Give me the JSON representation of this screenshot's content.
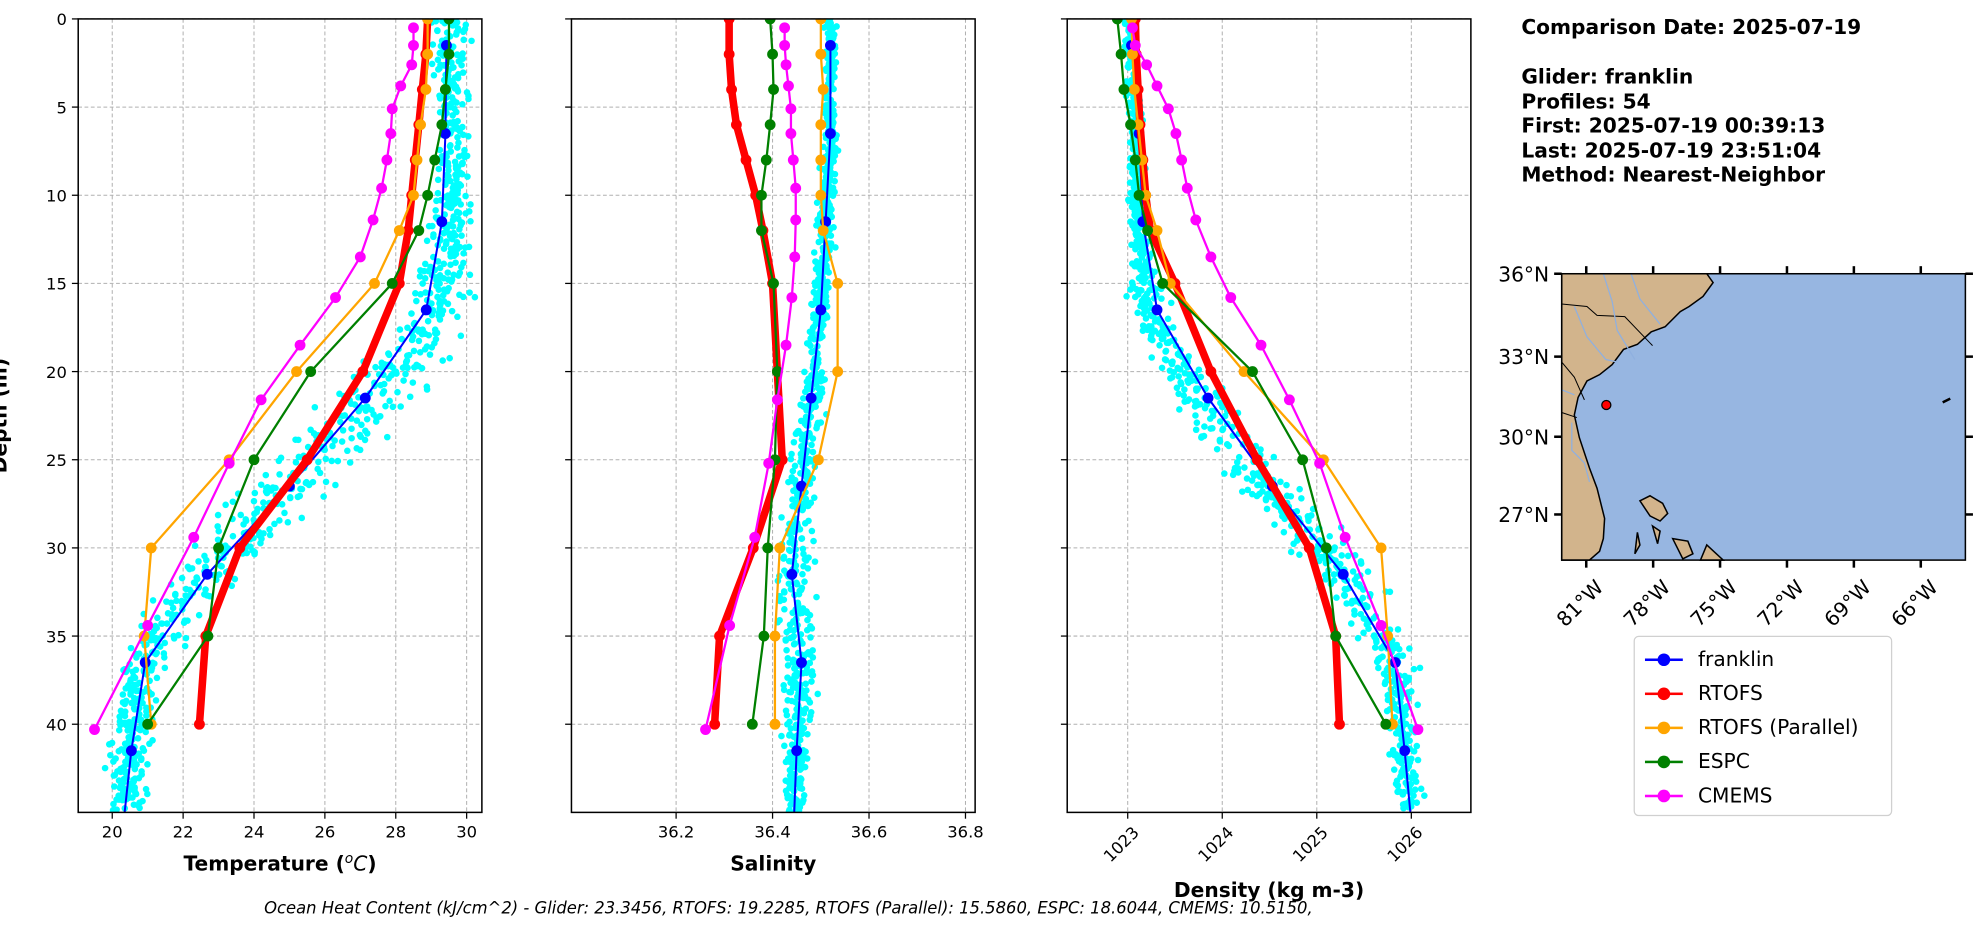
{
  "info": {
    "comparison_date": "Comparison Date: 2025-07-19",
    "glider": "Glider: franklin",
    "profiles": "Profiles: 54",
    "first": "First: 2025-07-19 00:39:13",
    "last": "Last: 2025-07-19 23:51:04",
    "method": "Method: Nearest-Neighbor"
  },
  "ohc_text": "Ocean Heat Content (kJ/cm^2) - Glider: 23.3456,  RTOFS: 19.2285,  RTOFS (Parallel): 15.5860,  ESPC: 18.6044,  CMEMS: 10.5150,",
  "legend": [
    {
      "label": "franklin",
      "color": "#0000ff"
    },
    {
      "label": "RTOFS",
      "color": "#ff0000"
    },
    {
      "label": "RTOFS (Parallel)",
      "color": "#ffa500"
    },
    {
      "label": "ESPC",
      "color": "#008000"
    },
    {
      "label": "CMEMS",
      "color": "#ff00ff"
    }
  ],
  "scatter_color": "#00ffff",
  "map": {
    "lat_ticks": [
      "36°N",
      "33°N",
      "30°N",
      "27°N"
    ],
    "lat_values": [
      36,
      33,
      30,
      27
    ],
    "lon_ticks": [
      "81°W",
      "78°W",
      "75°W",
      "72°W",
      "69°W",
      "66°W"
    ],
    "lon_values": [
      -81,
      -78,
      -75,
      -72,
      -69,
      -66
    ],
    "lon_range": [
      -82.1,
      -64.0
    ],
    "lat_range": [
      25.2,
      36.0
    ],
    "glider_position": {
      "lon": -80.1,
      "lat": 31.2
    },
    "land_color": "#d2b48c",
    "ocean_color": "#97b6e1"
  },
  "chart_data": [
    {
      "type": "line",
      "id": "temperature",
      "xlabel_prefix": "Temperature (",
      "xlabel_sup": "o",
      "xlabel_unit": "C",
      "xlabel_suffix": ")",
      "ylabel": "Depth (m)",
      "xlim": [
        19.04,
        30.43
      ],
      "ylim": [
        45,
        0
      ],
      "xticks": [
        20,
        22,
        24,
        26,
        28,
        30
      ],
      "xtick_labels": [
        "20",
        "22",
        "24",
        "26",
        "28",
        "30"
      ],
      "yticks": [
        0,
        5,
        10,
        15,
        20,
        25,
        30,
        35,
        40
      ],
      "ytick_labels": [
        "0",
        "5",
        "10",
        "15",
        "20",
        "25",
        "30",
        "35",
        "40"
      ],
      "grid": true,
      "scatter_spread": [
        [
          0,
          0.35
        ],
        [
          10,
          0.3
        ],
        [
          15,
          0.5
        ],
        [
          20,
          0.8
        ],
        [
          25,
          0.9
        ],
        [
          30,
          0.8
        ],
        [
          35,
          0.5
        ],
        [
          45,
          0.35
        ]
      ],
      "scatter_bias": [
        [
          0,
          0.1
        ],
        [
          15,
          0.3
        ],
        [
          20,
          0.3
        ],
        [
          25,
          0.0
        ],
        [
          45,
          0.0
        ]
      ],
      "series": [
        {
          "name": "franklin",
          "depth": [
            1.5,
            6.5,
            11.5,
            16.5,
            21.5,
            26.5,
            31.5,
            36.5,
            41.5,
            45
          ],
          "values": [
            29.43,
            29.4,
            29.3,
            28.86,
            27.14,
            25.0,
            22.68,
            20.93,
            20.54,
            20.35
          ],
          "markers": [
            true,
            true,
            true,
            true,
            true,
            true,
            true,
            true,
            true,
            false
          ]
        },
        {
          "name": "RTOFS",
          "depth": [
            0,
            2,
            4,
            6,
            8,
            10,
            12,
            15,
            20,
            25,
            30,
            35,
            40
          ],
          "values": [
            28.9,
            28.85,
            28.75,
            28.65,
            28.55,
            28.45,
            28.35,
            28.1,
            27.07,
            25.5,
            23.6,
            22.64,
            22.46
          ]
        },
        {
          "name": "RTOFS (Parallel)",
          "depth": [
            0,
            2,
            4,
            6,
            8,
            10,
            12,
            15,
            20,
            25,
            30,
            35,
            40
          ],
          "values": [
            28.9,
            28.9,
            28.85,
            28.7,
            28.6,
            28.5,
            28.1,
            27.4,
            25.2,
            23.3,
            21.1,
            20.9,
            21.1
          ]
        },
        {
          "name": "ESPC",
          "depth": [
            0,
            2,
            4,
            6,
            8,
            10,
            12,
            15,
            20,
            25,
            30,
            35,
            40
          ],
          "values": [
            29.5,
            29.5,
            29.4,
            29.3,
            29.1,
            28.9,
            28.65,
            27.9,
            25.6,
            24.0,
            23.0,
            22.7,
            21.0
          ]
        },
        {
          "name": "CMEMS",
          "depth": [
            0.5,
            1.5,
            2.6,
            3.8,
            5.1,
            6.5,
            8.0,
            9.6,
            11.4,
            13.5,
            15.8,
            18.5,
            21.6,
            25.2,
            29.4,
            34.4,
            40.3
          ],
          "values": [
            28.5,
            28.5,
            28.45,
            28.14,
            27.9,
            27.86,
            27.75,
            27.6,
            27.36,
            27.0,
            26.3,
            25.3,
            24.2,
            23.3,
            22.3,
            21.0,
            19.5
          ]
        }
      ]
    },
    {
      "type": "line",
      "id": "salinity",
      "xlabel": "Salinity",
      "xlim": [
        35.983,
        36.82
      ],
      "ylim": [
        45,
        0
      ],
      "xticks": [
        36.2,
        36.4,
        36.6,
        36.8
      ],
      "xtick_labels": [
        "36.2",
        "36.4",
        "36.6",
        "36.8"
      ],
      "yticks": [
        0,
        5,
        10,
        15,
        20,
        25,
        30,
        35,
        40
      ],
      "grid": true,
      "scatter_spread": [
        [
          0,
          0.008
        ],
        [
          15,
          0.012
        ],
        [
          25,
          0.02
        ],
        [
          35,
          0.025
        ],
        [
          45,
          0.015
        ]
      ],
      "scatter_bias": [
        [
          0,
          0.0
        ],
        [
          45,
          0.0
        ]
      ],
      "series": [
        {
          "name": "franklin",
          "depth": [
            1.5,
            6.5,
            11.5,
            16.5,
            21.5,
            26.5,
            31.5,
            36.5,
            41.5,
            45
          ],
          "values": [
            36.52,
            36.52,
            36.51,
            36.5,
            36.48,
            36.46,
            36.44,
            36.46,
            36.45,
            36.445
          ],
          "markers": [
            true,
            true,
            true,
            true,
            true,
            true,
            true,
            true,
            true,
            false
          ]
        },
        {
          "name": "RTOFS",
          "depth": [
            0,
            2,
            4,
            6,
            8,
            10,
            12,
            15,
            20,
            25,
            30,
            35,
            40
          ],
          "values": [
            36.31,
            36.31,
            36.315,
            36.325,
            36.345,
            36.365,
            36.38,
            36.4,
            36.41,
            36.42,
            36.36,
            36.29,
            36.28
          ]
        },
        {
          "name": "RTOFS (Parallel)",
          "depth": [
            0,
            2,
            4,
            6,
            8,
            10,
            12,
            15,
            20,
            25,
            30,
            35,
            40
          ],
          "values": [
            36.5,
            36.5,
            36.505,
            36.5,
            36.5,
            36.5,
            36.505,
            36.535,
            36.535,
            36.495,
            36.415,
            36.405,
            36.405
          ]
        },
        {
          "name": "ESPC",
          "depth": [
            0,
            2,
            4,
            6,
            8,
            10,
            12,
            15,
            20,
            25,
            30,
            35,
            40
          ],
          "values": [
            36.395,
            36.4,
            36.402,
            36.395,
            36.387,
            36.377,
            36.377,
            36.402,
            36.41,
            36.405,
            36.39,
            36.382,
            36.358
          ]
        },
        {
          "name": "CMEMS",
          "depth": [
            0.5,
            1.5,
            2.6,
            3.8,
            5.1,
            6.5,
            8.0,
            9.6,
            11.4,
            13.5,
            15.8,
            18.5,
            21.6,
            25.2,
            29.4,
            34.4,
            40.3
          ],
          "values": [
            36.425,
            36.425,
            36.428,
            36.433,
            36.438,
            36.438,
            36.443,
            36.448,
            36.448,
            36.446,
            36.44,
            36.428,
            36.41,
            36.392,
            36.363,
            36.311,
            36.261
          ]
        }
      ]
    },
    {
      "type": "line",
      "id": "density",
      "xlabel": "Density (kg m-3)",
      "xlim": [
        1022.36,
        1026.63
      ],
      "ylim": [
        45,
        0
      ],
      "xticks": [
        1023,
        1024,
        1025,
        1026
      ],
      "xtick_labels": [
        "1023",
        "1024",
        "1025",
        "1026"
      ],
      "yticks": [
        0,
        5,
        10,
        15,
        20,
        25,
        30,
        35,
        40
      ],
      "grid": true,
      "scatter_spread": [
        [
          0,
          0.05
        ],
        [
          12,
          0.06
        ],
        [
          18,
          0.15
        ],
        [
          25,
          0.22
        ],
        [
          32,
          0.2
        ],
        [
          38,
          0.12
        ],
        [
          45,
          0.1
        ]
      ],
      "scatter_bias": [
        [
          0,
          0.0
        ],
        [
          18,
          -0.1
        ],
        [
          24,
          -0.1
        ],
        [
          30,
          0.0
        ],
        [
          45,
          0.0
        ]
      ],
      "series": [
        {
          "name": "franklin",
          "depth": [
            1.5,
            6.5,
            11.5,
            16.5,
            21.5,
            26.5,
            31.5,
            36.5,
            41.5,
            45
          ],
          "values": [
            1023.04,
            1023.12,
            1023.16,
            1023.31,
            1023.85,
            1024.53,
            1025.28,
            1025.83,
            1025.93,
            1025.99
          ],
          "markers": [
            true,
            true,
            true,
            true,
            true,
            true,
            true,
            true,
            true,
            false
          ]
        },
        {
          "name": "RTOFS",
          "depth": [
            0,
            2,
            4,
            6,
            8,
            10,
            12,
            15,
            20,
            25,
            30,
            35,
            40
          ],
          "values": [
            1023.08,
            1023.09,
            1023.11,
            1023.13,
            1023.16,
            1023.19,
            1023.24,
            1023.5,
            1023.88,
            1024.37,
            1024.92,
            1025.2,
            1025.24
          ]
        },
        {
          "name": "RTOFS (Parallel)",
          "depth": [
            0,
            2,
            4,
            6,
            8,
            10,
            12,
            15,
            20,
            25,
            30,
            35,
            40
          ],
          "values": [
            1023.04,
            1023.05,
            1023.07,
            1023.11,
            1023.15,
            1023.19,
            1023.31,
            1023.45,
            1024.23,
            1025.07,
            1025.68,
            1025.75,
            1025.8
          ]
        },
        {
          "name": "ESPC",
          "depth": [
            0,
            2,
            4,
            6,
            8,
            10,
            12,
            15,
            20,
            25,
            30,
            35,
            40
          ],
          "values": [
            1022.89,
            1022.93,
            1022.96,
            1023.03,
            1023.08,
            1023.12,
            1023.21,
            1023.37,
            1024.32,
            1024.85,
            1025.1,
            1025.2,
            1025.73
          ]
        },
        {
          "name": "CMEMS",
          "depth": [
            0.5,
            1.5,
            2.6,
            3.8,
            5.1,
            6.5,
            8.0,
            9.6,
            11.4,
            13.5,
            15.8,
            18.5,
            21.6,
            25.2,
            29.4,
            34.4,
            40.3
          ],
          "values": [
            1023.05,
            1023.08,
            1023.2,
            1023.31,
            1023.43,
            1023.51,
            1023.57,
            1023.63,
            1023.72,
            1023.88,
            1024.09,
            1024.41,
            1024.71,
            1025.03,
            1025.3,
            1025.68,
            1026.07
          ]
        }
      ]
    }
  ]
}
